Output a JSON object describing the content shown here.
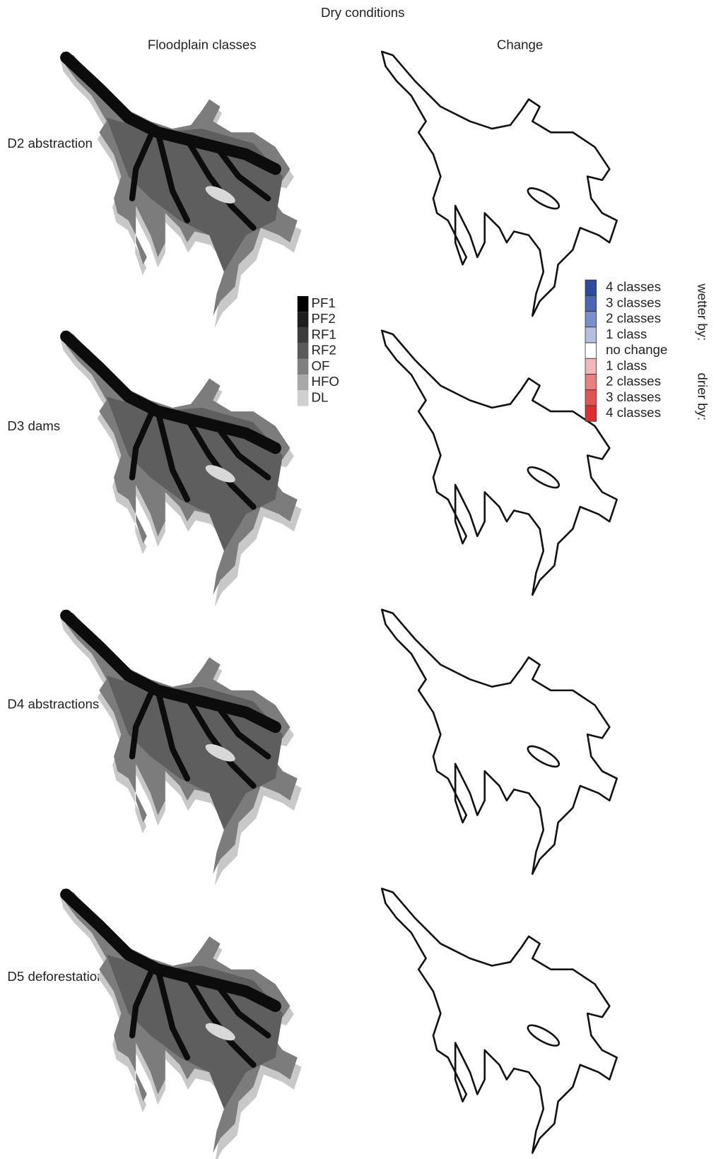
{
  "title": "Dry conditions",
  "columns": [
    "Floodplain classes",
    "Change"
  ],
  "rows": [
    "D2 abstraction",
    "D3 dams",
    "D4 abstractions",
    "D5 deforestation"
  ],
  "class_legend": [
    {
      "label": "PF1",
      "color": "#000000"
    },
    {
      "label": "PF2",
      "color": "#1e1e1e"
    },
    {
      "label": "RF1",
      "color": "#3c3c3c"
    },
    {
      "label": "RF2",
      "color": "#5a5a5a"
    },
    {
      "label": "OF",
      "color": "#808080"
    },
    {
      "label": "HFO",
      "color": "#a8a8a8"
    },
    {
      "label": "DL",
      "color": "#d0d0d0"
    }
  ],
  "change_legend": {
    "groups": [
      "wetter by:",
      "drier by:"
    ],
    "items": [
      {
        "label": "4 classes",
        "color": "#2b4aa0"
      },
      {
        "label": "3 classes",
        "color": "#4a66b5"
      },
      {
        "label": "2 classes",
        "color": "#7a8ecb"
      },
      {
        "label": "1 class",
        "color": "#b4bfe2"
      },
      {
        "label": "no change",
        "color": "#ffffff"
      },
      {
        "label": "1 class",
        "color": "#f2b8b8"
      },
      {
        "label": "2 classes",
        "color": "#ea7f7f"
      },
      {
        "label": "3 classes",
        "color": "#e25454"
      },
      {
        "label": "4 classes",
        "color": "#dc2f2f"
      }
    ]
  }
}
